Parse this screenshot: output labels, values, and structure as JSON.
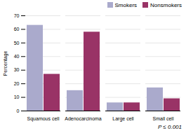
{
  "chart_data": {
    "type": "bar",
    "categories": [
      "Squamous cell",
      "Adenocarcinoma",
      "Large cell",
      "Small cell"
    ],
    "series": [
      {
        "name": "Smokers",
        "color": "#aaaacc",
        "values": [
          63,
          15,
          6,
          17
        ]
      },
      {
        "name": "Nonsmokers",
        "color": "#993366",
        "values": [
          27,
          58,
          6,
          9
        ]
      }
    ],
    "ylabel": "Percentage",
    "ylim": [
      0,
      70
    ],
    "yticks": [
      0,
      10,
      20,
      30,
      40,
      50,
      60,
      70
    ],
    "grid": true,
    "legend": "upper right",
    "annotation": "P ≤ 0.001"
  }
}
